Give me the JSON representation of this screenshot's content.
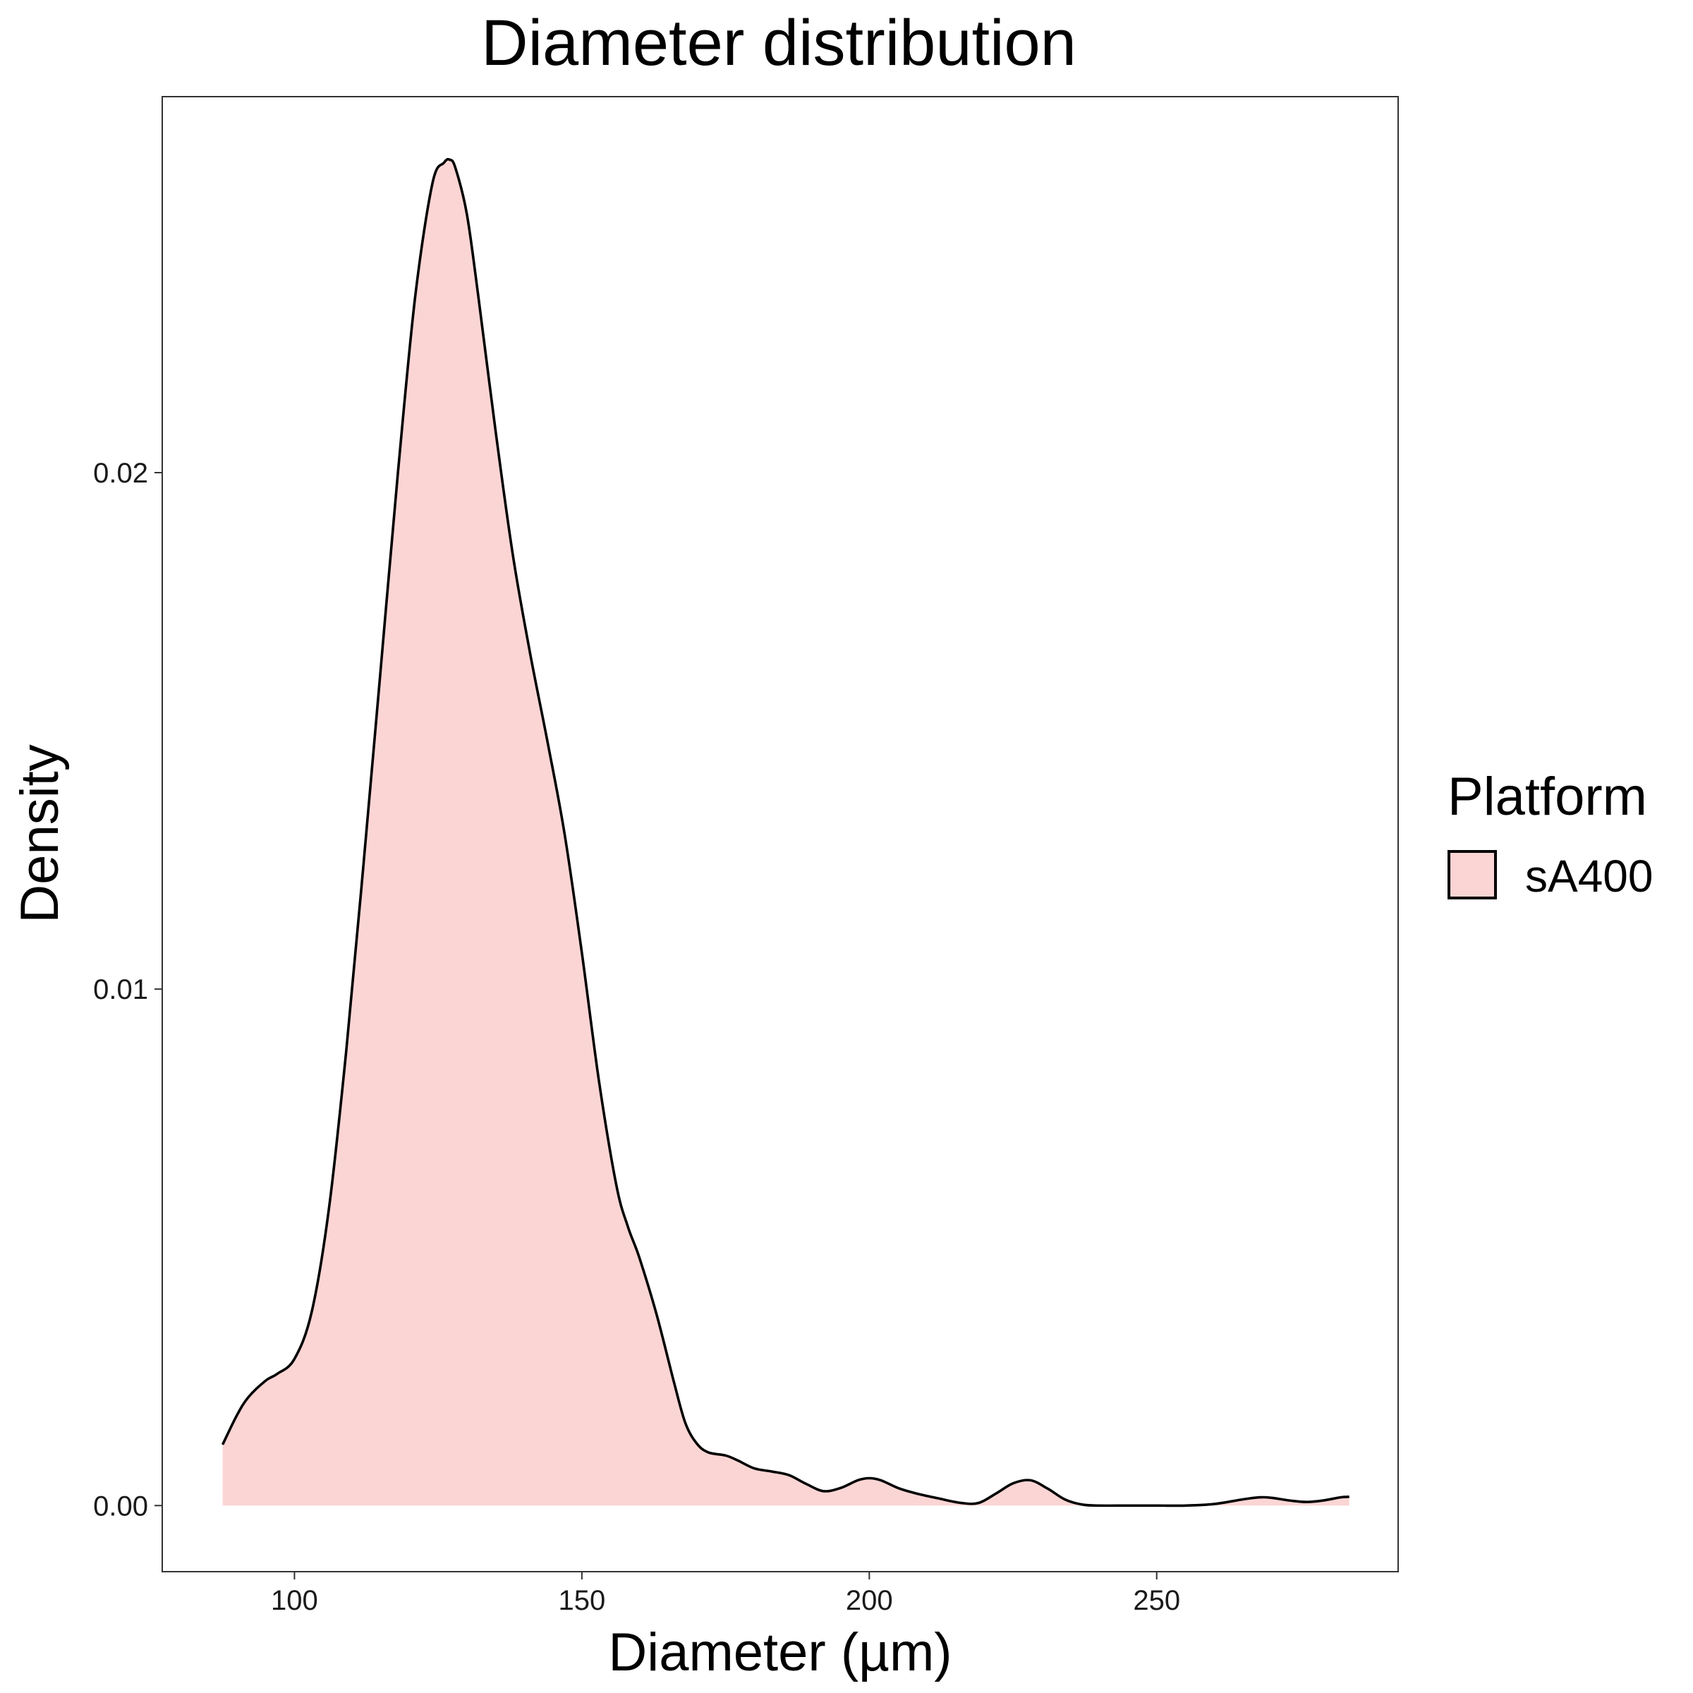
{
  "chart_data": {
    "type": "area",
    "title": "Diameter distribution",
    "xlabel": "Diameter (µm)",
    "ylabel": "Density",
    "xlim": [
      77,
      292
    ],
    "ylim": [
      -0.00128,
      0.02728
    ],
    "x_ticks": [
      {
        "value": 100,
        "label": "100"
      },
      {
        "value": 150,
        "label": "150"
      },
      {
        "value": 200,
        "label": "200"
      },
      {
        "value": 250,
        "label": "250"
      }
    ],
    "y_ticks": [
      {
        "value": 0.0,
        "label": "0.00"
      },
      {
        "value": 0.01,
        "label": "0.01"
      },
      {
        "value": 0.02,
        "label": "0.02"
      }
    ],
    "grid": false,
    "legend": {
      "title": "Platform",
      "position": "right",
      "entries": [
        {
          "name": "sA400",
          "fill": "#fbd5d4"
        }
      ]
    },
    "series": [
      {
        "name": "sA400",
        "fill": "#fbd5d4",
        "line_color": "#000000",
        "x": [
          87.5,
          90,
          92,
          95,
          97,
          100,
          103,
          106,
          109,
          112,
          115,
          118,
          121,
          124,
          126,
          127,
          128,
          130,
          132,
          135,
          138,
          141,
          144,
          147,
          150,
          153,
          156,
          158,
          160,
          163,
          166,
          168,
          170,
          172,
          175,
          177,
          180,
          183,
          186,
          189,
          192,
          195,
          198,
          200,
          202,
          205,
          208,
          212,
          216,
          219,
          222,
          225,
          228,
          231,
          234,
          237,
          240,
          245,
          250,
          255,
          260,
          265,
          268,
          270,
          273,
          276,
          279,
          282,
          283.5
        ],
        "y": [
          0.00118,
          0.00175,
          0.0021,
          0.00242,
          0.00255,
          0.00284,
          0.00375,
          0.00575,
          0.0088,
          0.0124,
          0.0162,
          0.02,
          0.0234,
          0.0256,
          0.026,
          0.02606,
          0.0259,
          0.025,
          0.0234,
          0.0208,
          0.0184,
          0.0165,
          0.0148,
          0.013,
          0.0107,
          0.0082,
          0.0062,
          0.0054,
          0.0048,
          0.0037,
          0.0024,
          0.0016,
          0.0012,
          0.00103,
          0.00097,
          0.00088,
          0.00072,
          0.00066,
          0.00059,
          0.00042,
          0.00028,
          0.00034,
          0.00049,
          0.00053,
          0.00049,
          0.00034,
          0.00024,
          0.00014,
          5e-05,
          5e-05,
          0.00023,
          0.00043,
          0.00049,
          0.00033,
          0.00012,
          2e-05,
          0.0,
          0.0,
          0.0,
          0.0,
          3e-05,
          0.00012,
          0.00016,
          0.00015,
          0.0001,
          7e-05,
          0.0001,
          0.00016,
          0.00017
        ]
      }
    ]
  }
}
